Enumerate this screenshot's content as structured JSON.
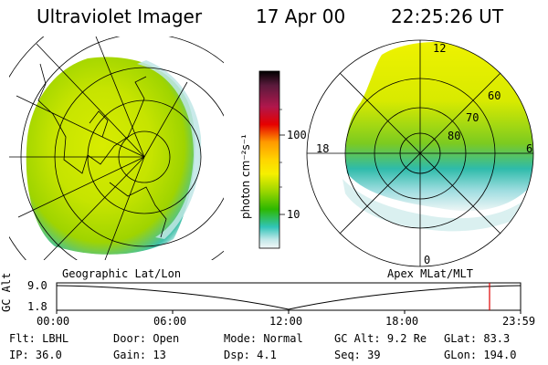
{
  "header": {
    "instrument": "Ultraviolet Imager",
    "date": "17 Apr 00",
    "time": "22:25:26 UT"
  },
  "panels": {
    "left_label": "Geographic Lat/Lon",
    "right_label": "Apex MLat/MLT"
  },
  "colorbar": {
    "label": "photon cm⁻²s⁻¹",
    "ticks": [
      "100",
      "10"
    ],
    "scale": "log",
    "colors": [
      "#000000",
      "#5a1a3c",
      "#b0174c",
      "#e60000",
      "#ff9900",
      "#ffd400",
      "#f6f000",
      "#9ad600",
      "#2db800",
      "#31c4b8",
      "#bfe7e8",
      "#f2f7f7"
    ]
  },
  "polar": {
    "mlt_labels": [
      "12",
      "18",
      "6",
      "0"
    ],
    "lat_labels": [
      "60",
      "70",
      "80"
    ]
  },
  "altitude_plot": {
    "ylabel": "GC Alt",
    "yticks": [
      "9.0",
      "1.8"
    ],
    "xticks": [
      "00:00",
      "06:00",
      "12:00",
      "18:00",
      "23:59"
    ],
    "current_time_marker": "22:25"
  },
  "info": {
    "filter": {
      "label": "Flt:",
      "value": "LBHL"
    },
    "door": {
      "label": "Door:",
      "value": "Open"
    },
    "mode": {
      "label": "Mode:",
      "value": "Normal"
    },
    "gc_alt": {
      "label": "GC Alt:",
      "value": "9.2 Re"
    },
    "glat": {
      "label": "GLat:",
      "value": "83.3"
    },
    "ip": {
      "label": "IP:",
      "value": "36.0"
    },
    "gain": {
      "label": "Gain:",
      "value": "13"
    },
    "dsp": {
      "label": "Dsp:",
      "value": "4.1"
    },
    "seq": {
      "label": "Seq:",
      "value": "39"
    },
    "glon": {
      "label": "GLon:",
      "value": "194.0"
    }
  }
}
